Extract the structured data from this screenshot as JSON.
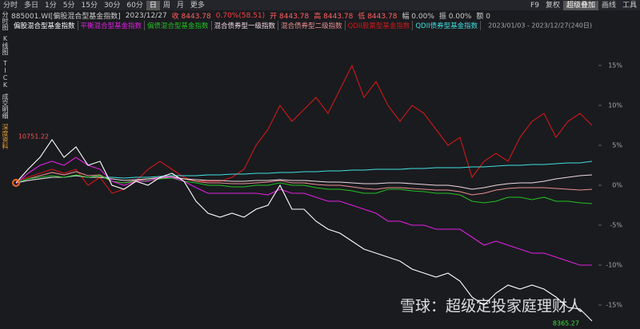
{
  "toolbar": {
    "tabs": [
      "分时",
      "多日",
      "1分",
      "5分",
      "15分",
      "30分",
      "60分",
      "日",
      "周",
      "月",
      "更多"
    ],
    "right": [
      "F9",
      "复权",
      "超级叠加",
      "画线",
      "工具"
    ]
  },
  "sidebar": [
    "分时图",
    "K线图",
    "TICK",
    "成交明细",
    "深度资料"
  ],
  "info": [
    "885001.WI[偏股混合型基金指数]",
    "2023/12/27",
    "收 8443.78",
    "0.70%(58.51)",
    "开 8443.78",
    "高 8443.78",
    "低 8443.78",
    "幅 0.00%",
    "振 0.00%",
    "额 0"
  ],
  "watermark": "雪球：超级定投家庭理财人",
  "chart_data": {
    "type": "line",
    "range_label": "2023/01/03 - 2023/12/27(240日)",
    "categories": [
      null,
      null,
      null,
      null,
      null,
      null,
      null,
      null,
      null,
      null,
      null,
      null,
      null,
      null,
      null,
      null,
      null,
      null,
      null,
      null,
      null,
      null,
      null,
      null,
      null,
      null,
      null,
      null,
      null,
      null,
      null,
      null,
      null,
      null,
      null,
      null,
      null,
      null,
      null,
      null,
      null,
      null,
      null,
      null,
      null,
      null,
      null,
      null,
      null
    ],
    "series": [
      {
        "name": "偏股混合型基金指数",
        "color": "#ffffff",
        "values": [
          0.3,
          2,
          3.5,
          5.7,
          3.5,
          4.8,
          2.5,
          3,
          0,
          -0.5,
          0.5,
          0,
          1,
          1.5,
          0.5,
          -2,
          -3.5,
          -4,
          -3.5,
          -4,
          -3,
          -2.5,
          0,
          -3,
          -3,
          -4.5,
          -5.5,
          -6,
          -7,
          -8,
          -8.5,
          -9,
          -9.5,
          -10.5,
          -11,
          -11.5,
          -11,
          -12,
          -14,
          -15,
          -13.5,
          -12.5,
          -13,
          -12.5,
          -13,
          -14,
          -15.3,
          -15.5,
          -17
        ]
      },
      {
        "name": "平衡混合型基金指数",
        "color": "#e020e0",
        "values": [
          0.2,
          1.5,
          2.5,
          3,
          2.5,
          3.5,
          2.5,
          2,
          0.5,
          0,
          0.5,
          0.5,
          1,
          1,
          0.5,
          -0.3,
          -1,
          -1,
          -1,
          -1,
          -1,
          -1.2,
          -0.5,
          -1,
          -1,
          -1.5,
          -2,
          -2,
          -2.5,
          -3,
          -3.5,
          -4.5,
          -4.5,
          -5,
          -5,
          -5.5,
          -5.5,
          -5.5,
          -6.5,
          -7.5,
          -7,
          -7.5,
          -8,
          -8.5,
          -8.5,
          -9,
          -9.5,
          -10,
          -10
        ]
      },
      {
        "name": "偏债混合型基金指数",
        "color": "#22c022",
        "values": [
          0.3,
          0.8,
          1,
          1.2,
          1,
          1.3,
          1,
          1.2,
          0.5,
          0.3,
          0.5,
          0.6,
          0.8,
          0.9,
          0.5,
          0.3,
          0,
          0,
          -0.2,
          -0.2,
          0,
          0,
          0.3,
          0,
          0,
          -0.3,
          -0.5,
          -0.5,
          -0.7,
          -1,
          -1,
          -0.5,
          -0.5,
          -0.7,
          -0.8,
          -1,
          -1,
          -1.2,
          -2,
          -2.2,
          -2,
          -1.5,
          -1.5,
          -1.8,
          -1.5,
          -2,
          -2,
          -2.2,
          -2.3
        ]
      },
      {
        "name": "混合债券型一级指数",
        "color": "#f0d8e0",
        "values": [
          0.3,
          0.6,
          0.8,
          1,
          1,
          1.2,
          1,
          1,
          0.8,
          0.6,
          0.7,
          0.8,
          0.9,
          1,
          0.8,
          0.7,
          0.6,
          0.6,
          0.5,
          0.5,
          0.6,
          0.6,
          0.7,
          0.6,
          0.6,
          0.5,
          0.4,
          0.4,
          0.3,
          0.2,
          0.2,
          0.3,
          0.3,
          0.2,
          0.1,
          0,
          0,
          -0.2,
          -0.5,
          -0.3,
          0,
          0.2,
          0.3,
          0.3,
          0.5,
          0.8,
          1,
          1.2,
          1.3
        ]
      },
      {
        "name": "混合债券型二级指数",
        "color": "#e89090",
        "values": [
          0.3,
          0.8,
          1.2,
          1.6,
          1.3,
          1.7,
          1.2,
          1.3,
          0.5,
          0.3,
          0.6,
          0.8,
          1,
          1.1,
          0.8,
          0.5,
          0.3,
          0.3,
          0.2,
          0.2,
          0.3,
          0.4,
          0.6,
          0.3,
          0.3,
          0.1,
          0,
          0,
          -0.2,
          -0.4,
          -0.5,
          -0.3,
          -0.3,
          -0.4,
          -0.5,
          -0.6,
          -0.6,
          -0.8,
          -1.2,
          -1,
          -0.6,
          -0.4,
          -0.3,
          -0.3,
          -0.3,
          -0.4,
          -0.5,
          -0.6,
          -0.5
        ]
      },
      {
        "name": "QDII股票型基金指数",
        "color": "#d01818",
        "values": [
          0.5,
          1,
          1.5,
          2,
          1.5,
          2,
          0,
          1,
          -1,
          -0.5,
          0.5,
          2,
          3,
          2,
          1,
          0.5,
          0.5,
          0.5,
          1,
          2,
          5,
          7,
          10,
          8,
          9.5,
          11,
          9,
          12,
          15,
          11,
          13,
          10,
          8,
          10,
          9,
          7,
          5,
          6,
          1,
          3,
          4,
          3,
          6,
          8,
          9,
          6,
          8,
          9,
          7.5
        ]
      },
      {
        "name": "QDII债券型基金指数",
        "color": "#40e0e0",
        "values": [
          0.3,
          0.6,
          0.8,
          1,
          1,
          1.2,
          1,
          1,
          1,
          0.9,
          1,
          1,
          1.1,
          1.2,
          1.2,
          1.2,
          1.3,
          1.3,
          1.4,
          1.4,
          1.5,
          1.5,
          1.6,
          1.6,
          1.7,
          1.7,
          1.8,
          1.8,
          1.9,
          1.9,
          2,
          2,
          2,
          2.1,
          2.1,
          2.2,
          2.2,
          2.2,
          2.3,
          2.3,
          2.4,
          2.5,
          2.5,
          2.6,
          2.6,
          2.7,
          2.8,
          2.8,
          3
        ]
      }
    ],
    "ylim": [
      -18,
      19.4
    ],
    "yticks": [
      {
        "value": 15,
        "label": "15%"
      },
      {
        "value": 10,
        "label": "10%"
      },
      {
        "value": 5,
        "label": "5%"
      },
      {
        "value": 0,
        "label": "0%"
      },
      {
        "value": -5,
        "label": "-5%"
      },
      {
        "value": -10,
        "label": "-10%"
      },
      {
        "value": -15,
        "label": "-15%"
      }
    ],
    "grid": false,
    "annotations": [
      "10751.22",
      "8365.27"
    ]
  }
}
